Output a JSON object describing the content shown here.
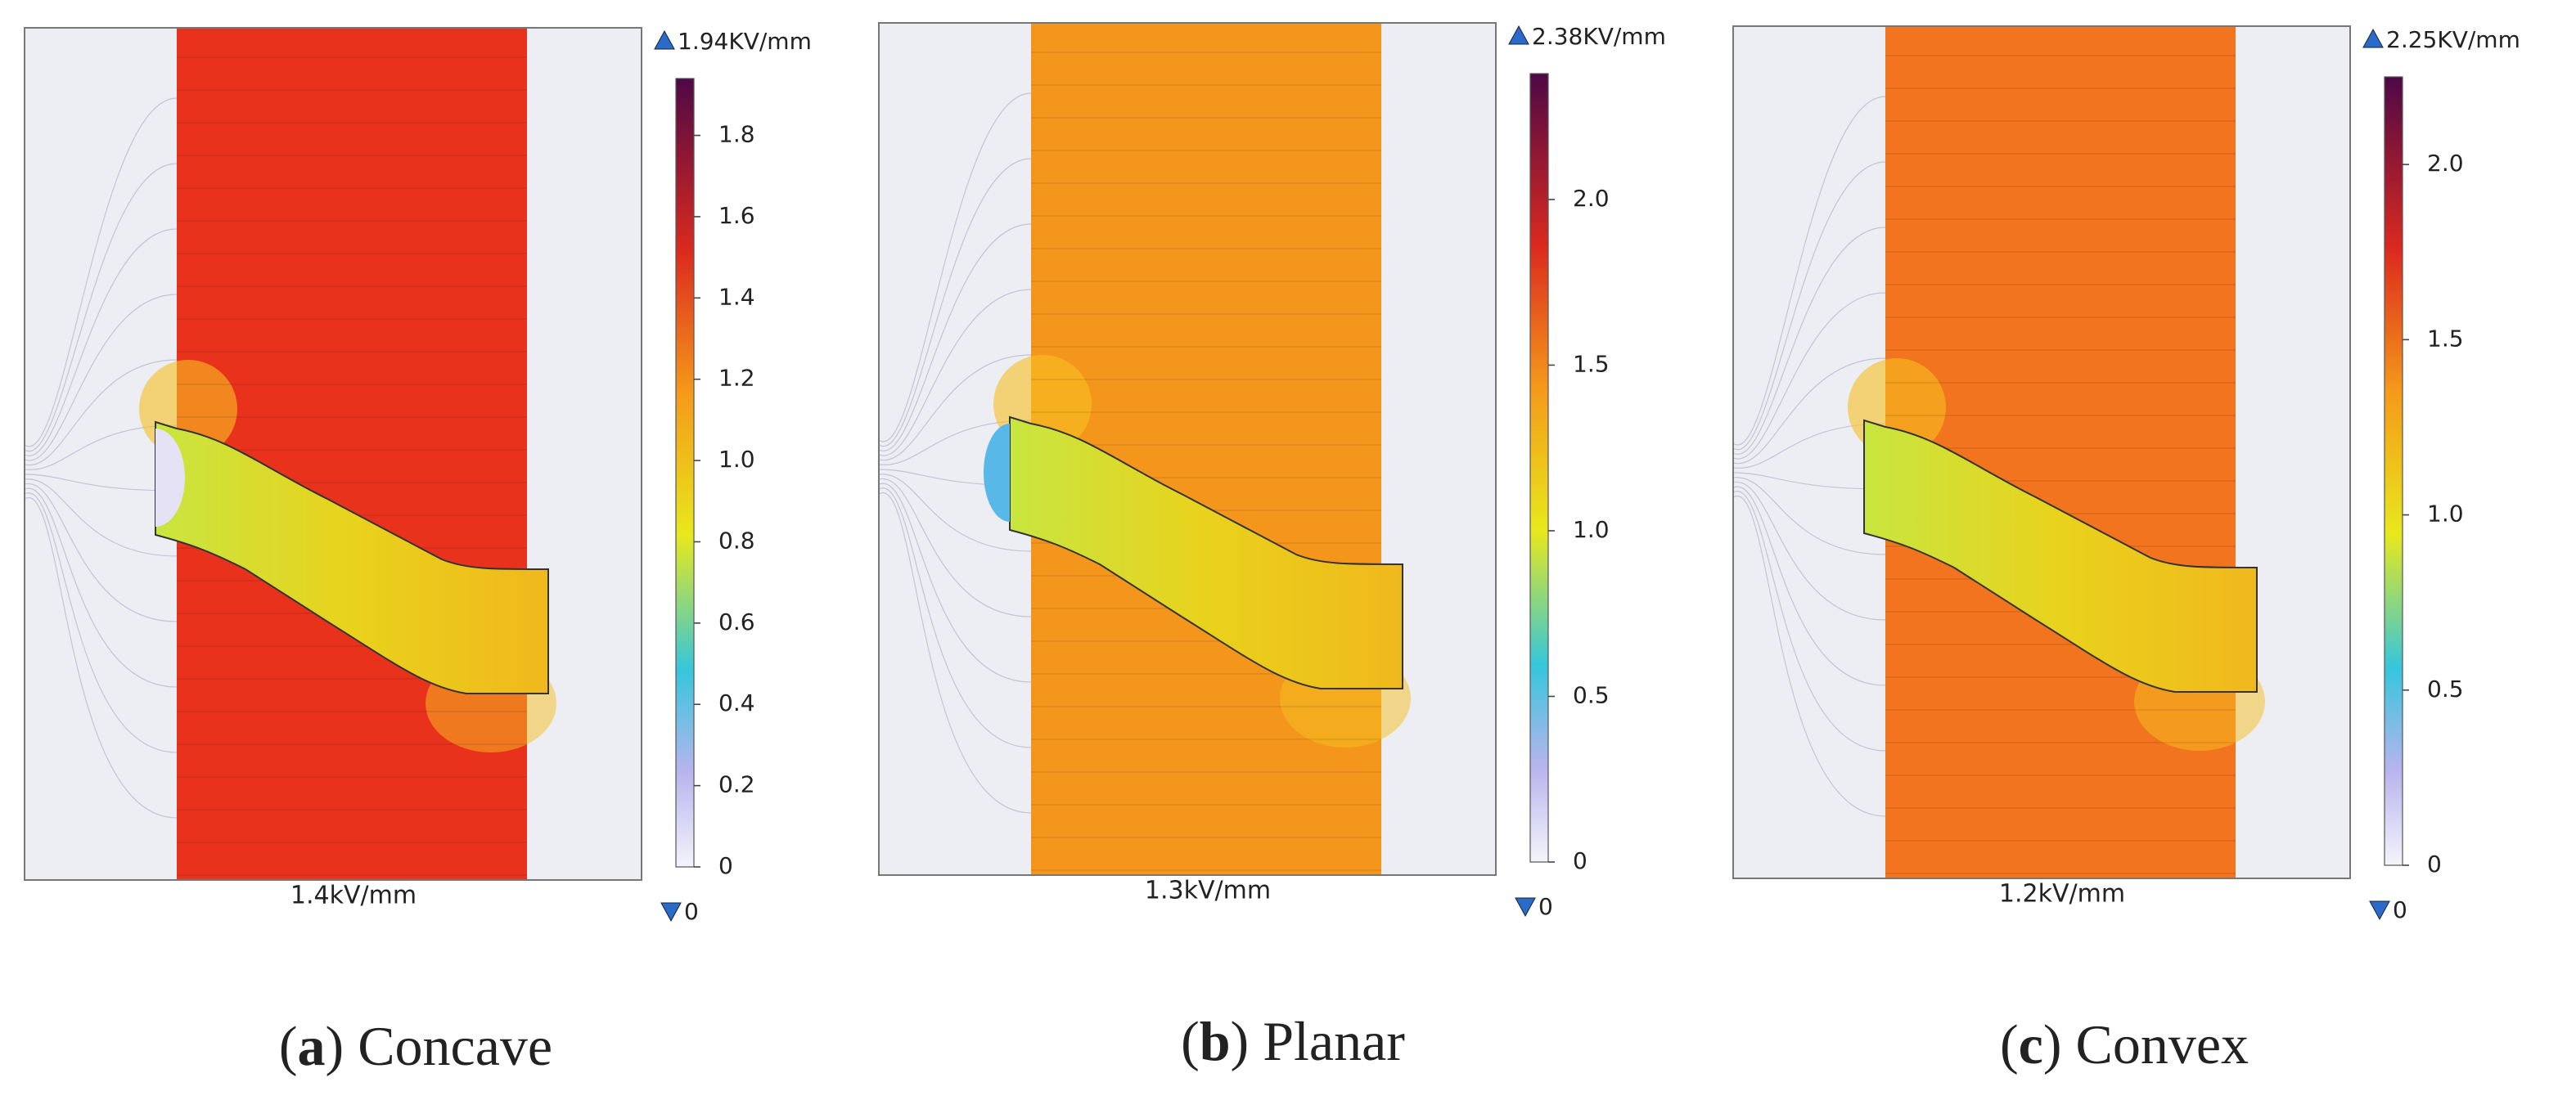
{
  "panels": [
    {
      "max_label": "1.94KV/mm",
      "min_label": "0",
      "colorbar": {
        "lim": [
          0,
          1.94
        ],
        "ticks": [
          0,
          0.2,
          0.4,
          0.6,
          0.8,
          {
            "value": 1,
            "label": "1.0"
          },
          1.2,
          1.4,
          1.6,
          1.8
        ]
      },
      "field_label": "1.4kV/mm",
      "caption": {
        "letter": "a",
        "name": "Concave"
      }
    },
    {
      "max_label": "2.38KV/mm",
      "min_label": "0",
      "colorbar": {
        "lim": [
          0,
          2.38
        ],
        "ticks": [
          0,
          0.5,
          {
            "value": 1,
            "label": "1.0"
          },
          1.5,
          {
            "value": 2,
            "label": "2.0"
          }
        ]
      },
      "field_label": "1.3kV/mm",
      "caption": {
        "letter": "b",
        "name": "Planar"
      }
    },
    {
      "max_label": "2.25KV/mm",
      "min_label": "0",
      "colorbar": {
        "lim": [
          0,
          2.25
        ],
        "ticks": [
          0,
          0.5,
          {
            "value": 1,
            "label": "1.0"
          },
          1.5,
          {
            "value": 2,
            "label": "2.0"
          }
        ]
      },
      "field_label": "1.2kV/mm",
      "caption": {
        "letter": "c",
        "name": "Convex"
      }
    }
  ]
}
